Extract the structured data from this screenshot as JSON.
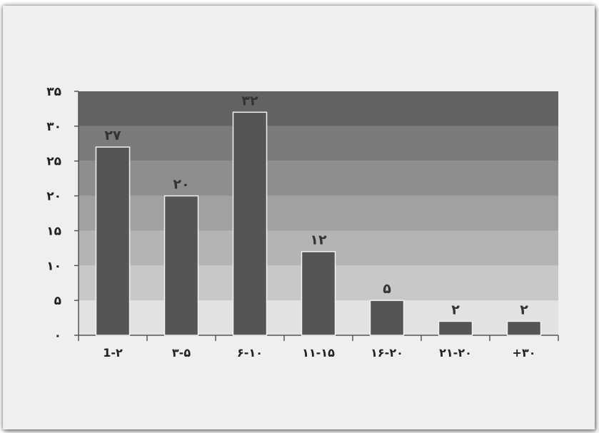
{
  "chart_data": {
    "type": "bar",
    "categories": [
      "1-۲",
      "۳-۵",
      "۶-۱۰",
      "۱۱-۱۵",
      "۱۶-۲۰",
      "۲۱-۲۰",
      "+۳۰"
    ],
    "values": [
      27,
      20,
      32,
      12,
      5,
      2,
      2
    ],
    "value_labels": [
      "۲۷",
      "۲۰",
      "۳۲",
      "۱۲",
      "۵",
      "۲",
      "۲"
    ],
    "ylim": [
      0,
      35
    ],
    "ytick_values": [
      0,
      5,
      10,
      15,
      20,
      25,
      30,
      35
    ],
    "ytick_labels": [
      "۰",
      "۵",
      "۱۰",
      "۱۵",
      "۲۰",
      "۲۵",
      "۳۰",
      "۳۵"
    ],
    "title": "",
    "xlabel": "",
    "ylabel": "",
    "legend": "none",
    "grid": "horizontal banded background",
    "colors": {
      "bar": "#555555",
      "bar_outline": "#f2f2f2",
      "bands_bottom_to_top": [
        "#e2e2e2",
        "#c8c8c8",
        "#b4b4b4",
        "#a1a1a1",
        "#8e8e8e",
        "#7b7b7b",
        "#626262"
      ],
      "axis": "#555555",
      "card_background": "#efefef"
    }
  }
}
